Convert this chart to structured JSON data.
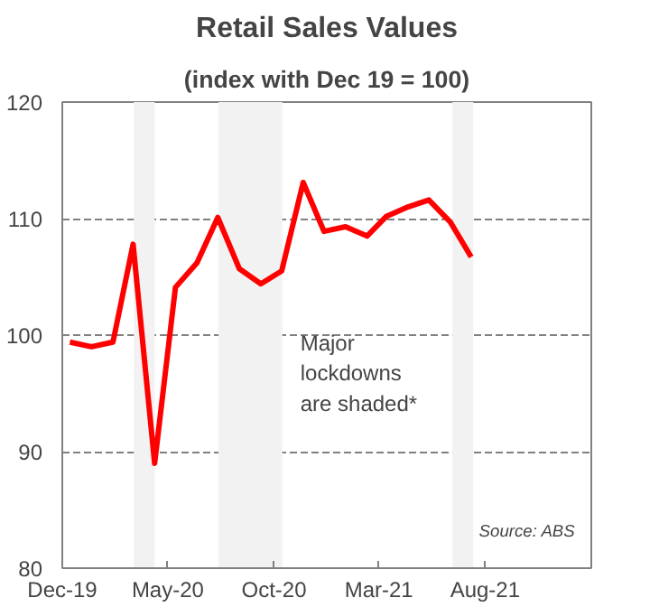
{
  "chart_data": {
    "type": "line",
    "title": "Retail Sales Values",
    "subtitle": "(index with Dec 19 = 100)",
    "x": [
      "2019-12-12",
      "2020-01-12",
      "2020-02-12",
      "2020-03-12",
      "2020-04-12",
      "2020-05-12",
      "2020-06-12",
      "2020-07-12",
      "2020-08-12",
      "2020-09-12",
      "2020-10-12",
      "2020-11-12",
      "2020-12-12",
      "2021-01-12",
      "2021-02-12",
      "2021-03-12",
      "2021-04-12",
      "2021-05-12",
      "2021-06-12",
      "2021-07-12"
    ],
    "series": [
      {
        "color": "#ff0000",
        "values": [
          99.4,
          99.0,
          99.4,
          107.8,
          89.0,
          104.1,
          106.2,
          110.1,
          105.7,
          104.4,
          105.5,
          113.1,
          108.9,
          109.3,
          108.5,
          110.2,
          111.0,
          111.6,
          109.7,
          106.7
        ]
      }
    ],
    "xlim": [
      "2019-12-01",
      "2022-01-01"
    ],
    "xticks": [
      {
        "value": "2019-12-01",
        "label": "Dec-19"
      },
      {
        "value": "2020-05-01",
        "label": "May-20"
      },
      {
        "value": "2020-10-01",
        "label": "Oct-20"
      },
      {
        "value": "2021-03-01",
        "label": "Mar-21"
      },
      {
        "value": "2021-08-01",
        "label": "Aug-21"
      }
    ],
    "ylim": [
      80,
      120
    ],
    "yticks": [
      80,
      90,
      100,
      110,
      120
    ],
    "grid": "y",
    "bands": [
      {
        "axis": "x",
        "from": "2020-03-13",
        "to": "2020-04-12",
        "color": "#f2f2f2"
      },
      {
        "axis": "x",
        "from": "2020-07-13",
        "to": "2020-10-13",
        "color": "#f2f2f2"
      },
      {
        "axis": "x",
        "from": "2021-06-15",
        "to": "2021-07-15",
        "color": "#f2f2f2"
      }
    ],
    "annotations": [
      "Major\nlockdowns\nare shaded*",
      "Source: ABS"
    ],
    "line_style": "solid",
    "marker": "none"
  }
}
